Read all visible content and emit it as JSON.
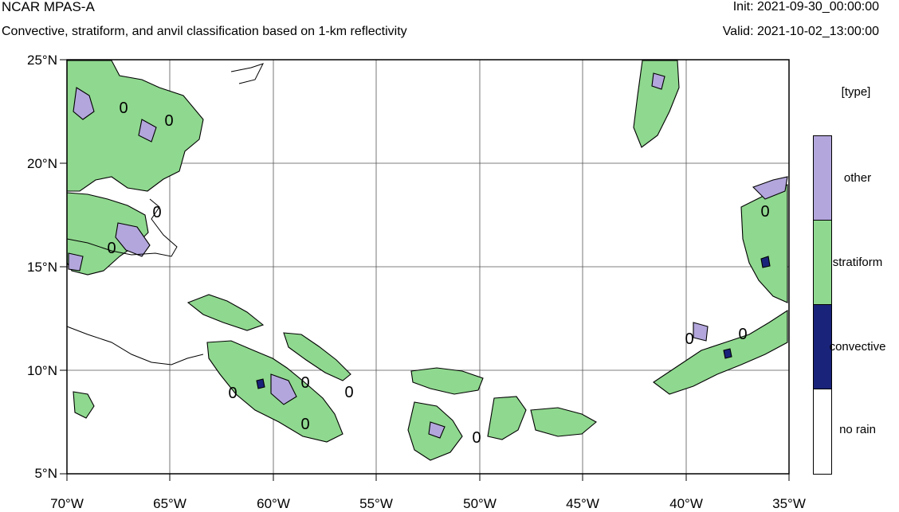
{
  "header": {
    "title": "NCAR MPAS-A",
    "subtitle": "Convective, stratiform, and anvil classification based on 1-km reflectivity",
    "init": "Init: 2021-09-30_00:00:00",
    "valid": "Valid: 2021-10-02_13:00:00"
  },
  "map": {
    "y_axis_labels": [
      "25°N",
      "20°N",
      "15°N",
      "10°N",
      "5°N"
    ],
    "x_axis_labels": [
      "70°W",
      "65°W",
      "60°W",
      "55°W",
      "50°W",
      "45°W",
      "40°W",
      "35°W"
    ],
    "contour_labels": [
      "0",
      "0",
      "0",
      "0",
      "0",
      "0",
      "0",
      "0",
      "0",
      "0",
      "0",
      "0"
    ]
  },
  "legend": {
    "title": "[type]",
    "items": [
      {
        "label": "other",
        "color": "#b3a6dc"
      },
      {
        "label": "stratiform",
        "color": "#8fd88f"
      },
      {
        "label": "convective",
        "color": "#1a237a"
      },
      {
        "label": "no rain",
        "color": "#ffffff"
      }
    ]
  },
  "colors": {
    "contour": "#000000",
    "grid": "#555555"
  }
}
